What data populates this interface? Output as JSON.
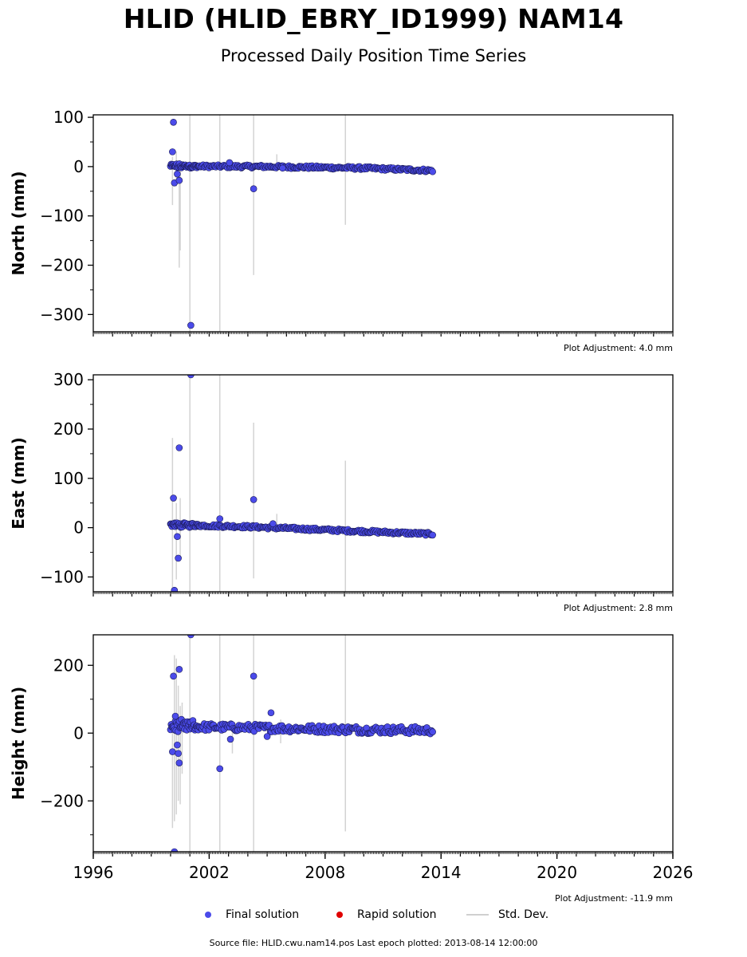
{
  "title": "HLID (HLID_EBRY_ID1999) NAM14",
  "subtitle": "Processed Daily Position Time Series",
  "legend": {
    "final": "Final solution",
    "rapid": "Rapid solution",
    "std": "Std. Dev."
  },
  "colors": {
    "final": "#4b4bea",
    "final_edge": "#1a1a55",
    "rapid": "#e00000",
    "std_dev": "#d3d3d3"
  },
  "footer": "Source file: HLID.cwu.nam14.pos  Last epoch plotted: 2013-08-14 12:00:00",
  "chart_data": [
    {
      "type": "scatter",
      "ylabel": "North (mm)",
      "plot_adjustment": "Plot Adjustment: 4.0 mm",
      "xlim": [
        1996,
        2026
      ],
      "ylim": [
        -335,
        105
      ],
      "yticks": [
        100,
        0,
        -100,
        -200,
        -300
      ],
      "ytick_labels": [
        "100",
        "0",
        "−100",
        "−200",
        "−300"
      ],
      "show_xtick_labels": false,
      "trend": [
        [
          2000.0,
          1
        ],
        [
          2005.0,
          0
        ],
        [
          2010.0,
          -3
        ],
        [
          2013.6,
          -8
        ]
      ],
      "noise": 3,
      "outliers": [
        [
          2000.15,
          90
        ],
        [
          2000.1,
          30
        ],
        [
          2000.2,
          -33
        ],
        [
          2000.45,
          -28
        ],
        [
          2000.35,
          -15
        ],
        [
          2001.05,
          -322
        ],
        [
          2003.05,
          8
        ],
        [
          2004.3,
          -45
        ],
        [
          2005.8,
          -3
        ]
      ],
      "errorbars": [
        [
          2000.1,
          -78,
          20
        ],
        [
          2000.3,
          -40,
          30
        ],
        [
          2000.45,
          -205,
          10
        ],
        [
          2000.5,
          -170,
          12
        ],
        [
          2001.0,
          -335,
          105
        ],
        [
          2002.55,
          -335,
          105
        ],
        [
          2004.3,
          -220,
          105
        ],
        [
          2005.5,
          -10,
          25
        ],
        [
          2009.05,
          -118,
          105
        ]
      ]
    },
    {
      "type": "scatter",
      "ylabel": "East (mm)",
      "plot_adjustment": "Plot Adjustment: 2.8 mm",
      "xlim": [
        1996,
        2026
      ],
      "ylim": [
        -130,
        310
      ],
      "yticks": [
        300,
        200,
        100,
        0,
        -100
      ],
      "ytick_labels": [
        "300",
        "200",
        "100",
        "0",
        "−100"
      ],
      "show_xtick_labels": false,
      "trend": [
        [
          2000.0,
          6
        ],
        [
          2004.0,
          2
        ],
        [
          2009.0,
          -6
        ],
        [
          2013.6,
          -13
        ]
      ],
      "noise": 3,
      "outliers": [
        [
          2000.15,
          60
        ],
        [
          2000.2,
          -127
        ],
        [
          2000.4,
          -62
        ],
        [
          2000.45,
          162
        ],
        [
          2000.35,
          -18
        ],
        [
          2001.05,
          310
        ],
        [
          2002.55,
          18
        ],
        [
          2004.3,
          57
        ],
        [
          2005.3,
          8
        ]
      ],
      "errorbars": [
        [
          2000.1,
          -130,
          182
        ],
        [
          2000.3,
          -105,
          50
        ],
        [
          2000.5,
          -60,
          60
        ],
        [
          2001.0,
          -130,
          310
        ],
        [
          2002.55,
          -130,
          310
        ],
        [
          2004.3,
          -103,
          213
        ],
        [
          2005.5,
          -10,
          28
        ],
        [
          2009.05,
          -130,
          136
        ]
      ]
    },
    {
      "type": "scatter",
      "ylabel": "Height (mm)",
      "plot_adjustment": "Plot Adjustment: -11.9 mm",
      "xlim": [
        1996,
        2026
      ],
      "ylim": [
        -350,
        290
      ],
      "yticks": [
        200,
        0,
        -200
      ],
      "ytick_labels": [
        "200",
        "0",
        "−200"
      ],
      "show_xtick_labels": true,
      "xticks": [
        1996,
        2002,
        2008,
        2014,
        2020,
        2026
      ],
      "xtick_labels": [
        "1996",
        "2002",
        "2008",
        "2014",
        "2020",
        "2026"
      ],
      "trend": [
        [
          2000.0,
          20
        ],
        [
          2005.0,
          15
        ],
        [
          2010.0,
          10
        ],
        [
          2013.6,
          8
        ]
      ],
      "noise": 11,
      "outliers": [
        [
          2000.15,
          168
        ],
        [
          2000.1,
          -55
        ],
        [
          2000.25,
          50
        ],
        [
          2000.35,
          -35
        ],
        [
          2000.4,
          -60
        ],
        [
          2000.45,
          -88
        ],
        [
          2000.45,
          188
        ],
        [
          2000.2,
          -350
        ],
        [
          2001.05,
          290
        ],
        [
          2002.55,
          -105
        ],
        [
          2004.3,
          168
        ],
        [
          2005.2,
          60
        ],
        [
          2003.1,
          -18
        ],
        [
          2005.0,
          -10
        ]
      ],
      "errorbars": [
        [
          2000.1,
          -280,
          50
        ],
        [
          2000.2,
          -260,
          230
        ],
        [
          2000.3,
          -240,
          220
        ],
        [
          2000.4,
          -200,
          140
        ],
        [
          2000.5,
          -210,
          80
        ],
        [
          2000.6,
          -120,
          90
        ],
        [
          2001.0,
          -350,
          290
        ],
        [
          2002.55,
          -350,
          290
        ],
        [
          2004.3,
          -350,
          290
        ],
        [
          2003.2,
          -60,
          35
        ],
        [
          2005.7,
          -30,
          40
        ],
        [
          2009.05,
          -290,
          290
        ]
      ]
    }
  ]
}
